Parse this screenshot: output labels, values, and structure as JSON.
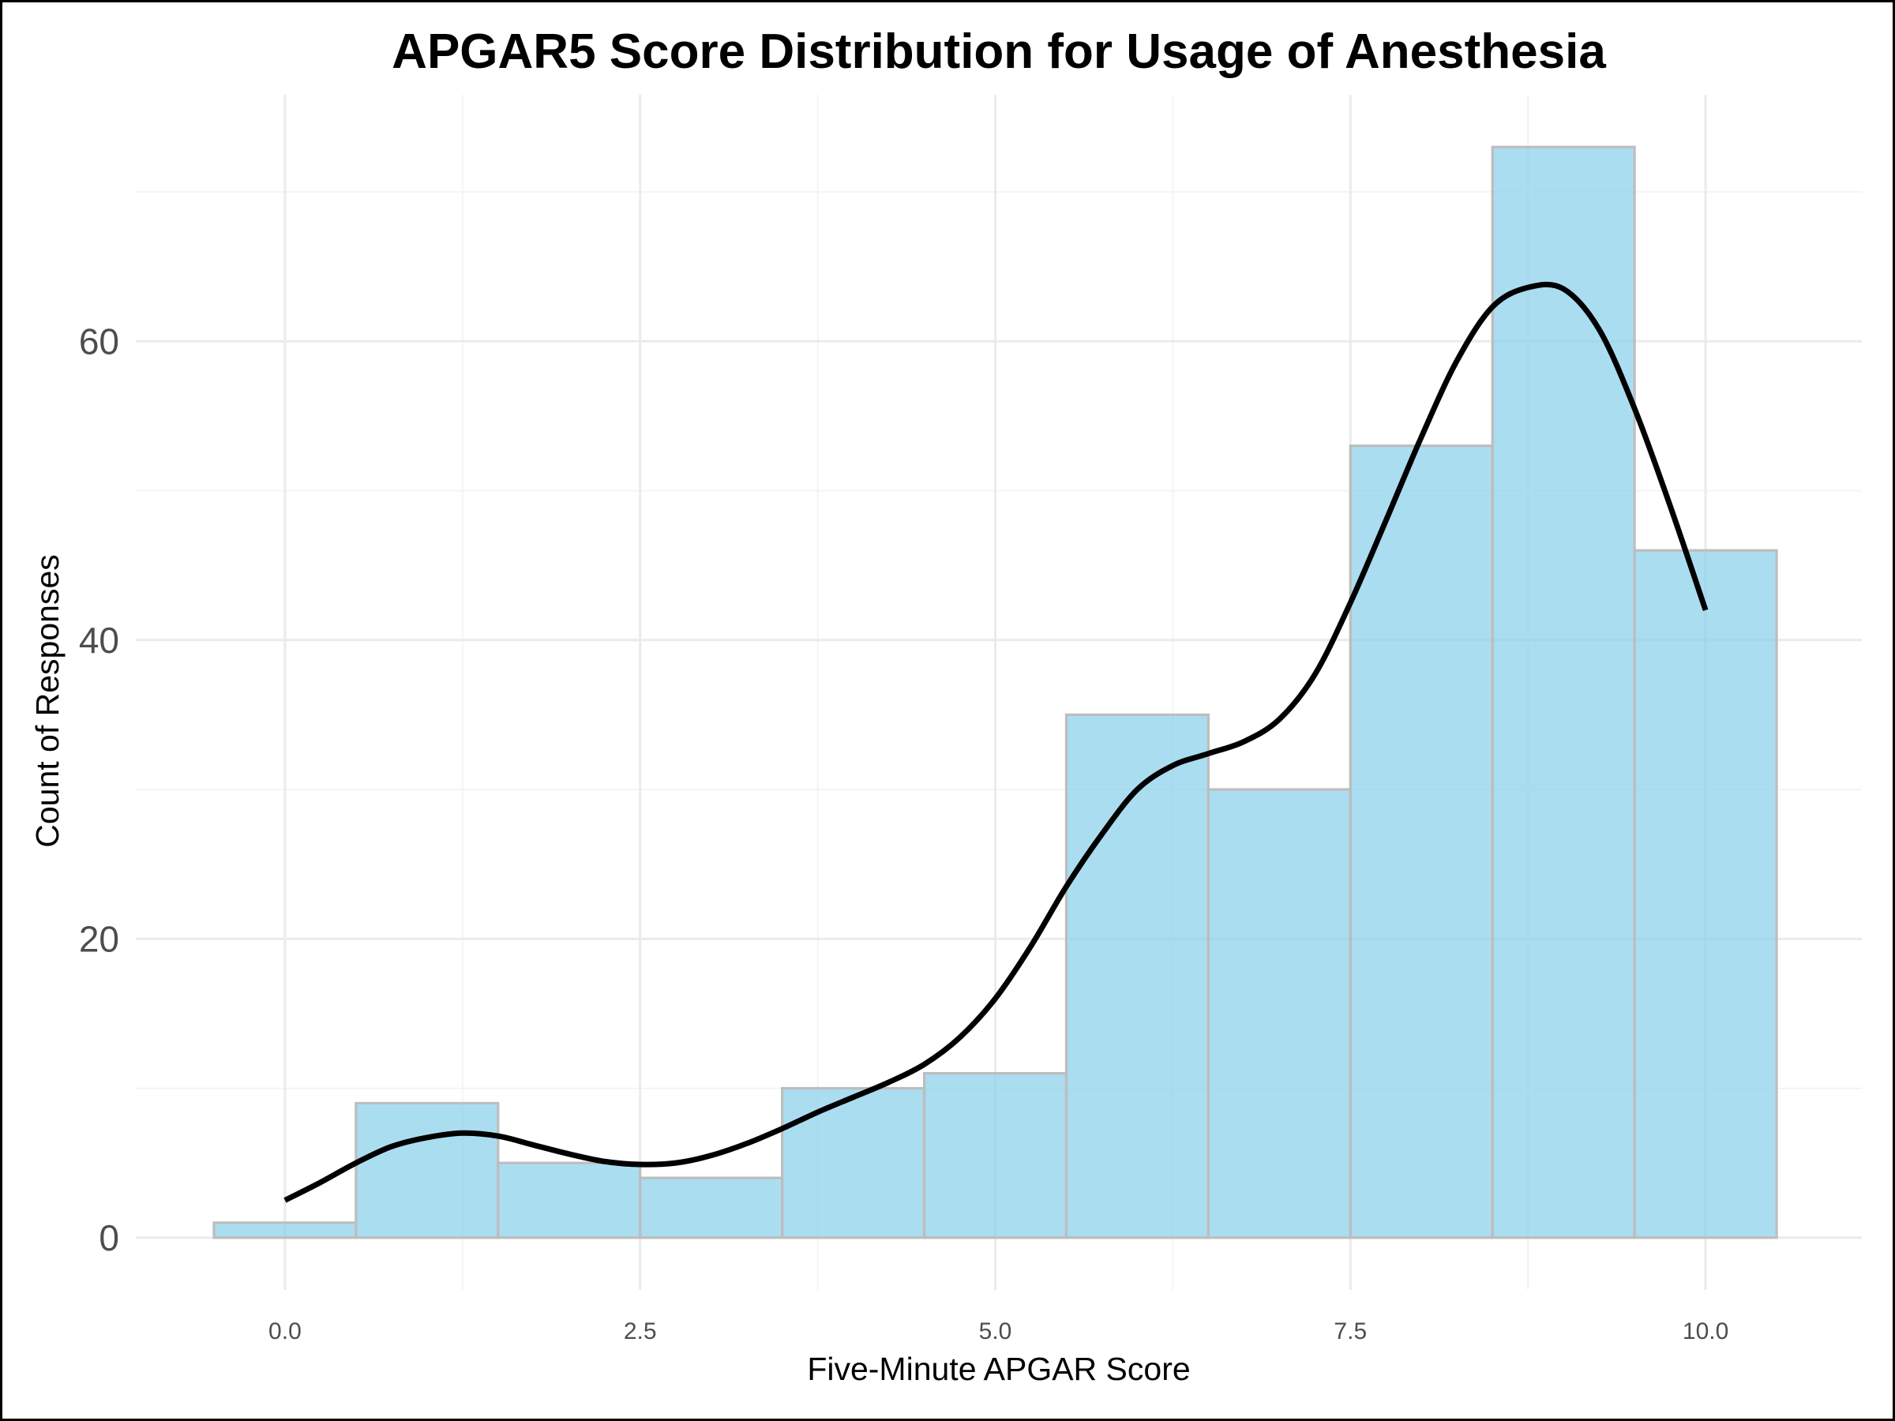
{
  "chart_data": {
    "type": "bar",
    "title": "APGAR5 Score Distribution for Usage of Anesthesia",
    "xlabel": "Five-Minute APGAR Score",
    "ylabel": "Count of Responses",
    "xlim": [
      -1.05,
      11.1
    ],
    "ylim": [
      -3.5,
      76.5
    ],
    "x_ticks": [
      0.0,
      2.5,
      5.0,
      7.5,
      10.0
    ],
    "x_tick_labels": [
      "0.0",
      "2.5",
      "5.0",
      "7.5",
      "10.0"
    ],
    "y_ticks": [
      0,
      20,
      40,
      60
    ],
    "y_tick_labels": [
      "0",
      "20",
      "40",
      "60"
    ],
    "grid": true,
    "bar_fill": "#87ceeb",
    "bar_opacity": 0.7,
    "bar_edge": "#bdbdbd",
    "curve_color": "#000000",
    "bins": [
      {
        "x0": -0.5,
        "x1": 0.5,
        "count": 1
      },
      {
        "x0": 0.5,
        "x1": 1.5,
        "count": 9
      },
      {
        "x0": 1.5,
        "x1": 2.5,
        "count": 5
      },
      {
        "x0": 2.5,
        "x1": 3.5,
        "count": 4
      },
      {
        "x0": 3.5,
        "x1": 4.5,
        "count": 10
      },
      {
        "x0": 4.5,
        "x1": 5.5,
        "count": 11
      },
      {
        "x0": 5.5,
        "x1": 6.5,
        "count": 35
      },
      {
        "x0": 6.5,
        "x1": 7.5,
        "count": 30
      },
      {
        "x0": 7.5,
        "x1": 8.5,
        "count": 53
      },
      {
        "x0": 8.5,
        "x1": 9.5,
        "count": 73
      },
      {
        "x0": 9.5,
        "x1": 10.5,
        "count": 46
      }
    ],
    "density_curve": [
      [
        0.0,
        2.5
      ],
      [
        0.25,
        3.7
      ],
      [
        0.5,
        5.0
      ],
      [
        0.75,
        6.1
      ],
      [
        1.0,
        6.7
      ],
      [
        1.25,
        7.0
      ],
      [
        1.5,
        6.8
      ],
      [
        1.75,
        6.2
      ],
      [
        2.0,
        5.6
      ],
      [
        2.25,
        5.1
      ],
      [
        2.5,
        4.9
      ],
      [
        2.75,
        5.0
      ],
      [
        3.0,
        5.5
      ],
      [
        3.25,
        6.3
      ],
      [
        3.5,
        7.3
      ],
      [
        3.75,
        8.4
      ],
      [
        4.0,
        9.4
      ],
      [
        4.25,
        10.4
      ],
      [
        4.5,
        11.6
      ],
      [
        4.75,
        13.4
      ],
      [
        5.0,
        16.0
      ],
      [
        5.25,
        19.5
      ],
      [
        5.5,
        23.5
      ],
      [
        5.75,
        27.0
      ],
      [
        6.0,
        30.0
      ],
      [
        6.25,
        31.6
      ],
      [
        6.5,
        32.4
      ],
      [
        6.75,
        33.2
      ],
      [
        7.0,
        34.7
      ],
      [
        7.25,
        37.7
      ],
      [
        7.5,
        42.5
      ],
      [
        7.75,
        48.0
      ],
      [
        8.0,
        53.6
      ],
      [
        8.25,
        58.7
      ],
      [
        8.5,
        62.3
      ],
      [
        8.75,
        63.6
      ],
      [
        9.0,
        63.5
      ],
      [
        9.25,
        60.8
      ],
      [
        9.5,
        55.5
      ],
      [
        9.75,
        49.0
      ],
      [
        10.0,
        42.0
      ]
    ]
  }
}
